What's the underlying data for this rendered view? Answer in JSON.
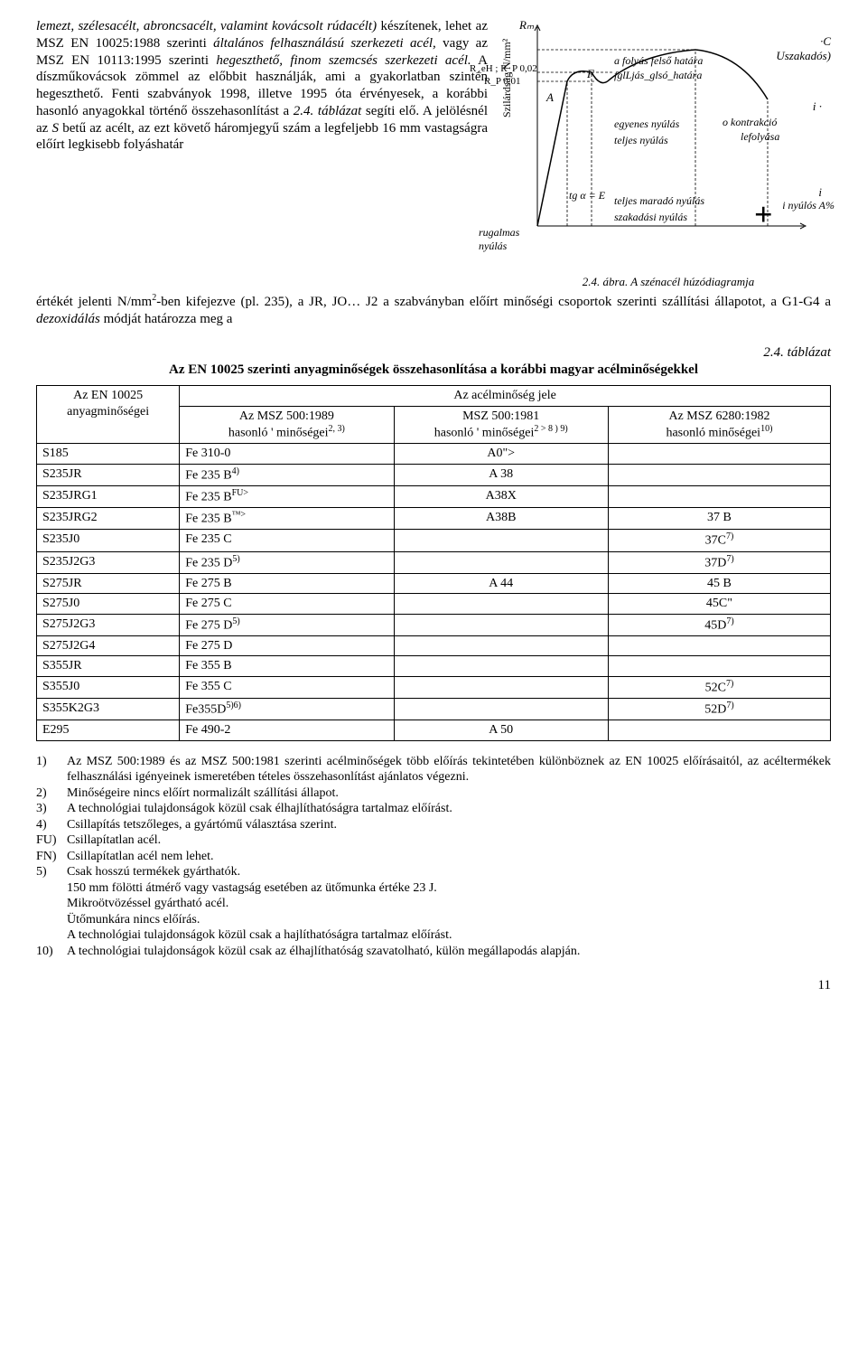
{
  "paragraph": {
    "sent1a": "lemezt, szélesacélt, abroncsacélt, ",
    "sent1b": "valamint kovácsolt rúdacélt)",
    "sent1c": " készítenek, lehet az MSZ EN 10025:1988 szerinti ",
    "sent1d": "általános felhasználású szerkezeti acél,",
    "sent1e": " vagy az MSZ EN 10113:1995 szerinti ",
    "sent1f": "hegeszthető, finom szemcsés szerkezeti acél.",
    "sent1g": " A díszműkovácsok zömmel az előbbit használják, ami a gyakorlatban szintén hegeszthető. Fenti szabványok 1998, illetve 1995 óta érvényesek, a korábbi hasonló anyagokkal történő összehasonlítást a ",
    "sent1h": "2.4. táblázat",
    "sent1i": " segíti elő. A jelölésnél az ",
    "sent1j": "S",
    "sent1k": " betű az acélt, az ezt követő háromjegyű szám a legfeljebb 16 mm vastagságra előírt legkisebb folyáshatár",
    "para2a": "értékét jelenti N/mm",
    "para2b": "-ben kifejezve (pl. 235), a JR, JO… J2 a szabványban előírt minőségi csoportok szerinti szállítási állapotot, a G1-G4 a ",
    "para2c": "dezoxidálás",
    "para2d": " módját határozza meg a"
  },
  "figure": {
    "Rm": "Rₘ",
    "ReH": "R_eH ; R_P 0,02",
    "Rp": "R_P 0,01",
    "yaxis": "Szilárdság\nN/mm²",
    "A": "A",
    "F": "F",
    "tg": "tg α = E",
    "rugalmas": "rugalmas\nnyúlás",
    "felsohat": "a folyás felső határa",
    "alsohat": "fglLjás_glsó_határa",
    "egyenes": "egyenes nyúlás",
    "teljes": "teljes nyúlás",
    "maradonyulas": "teljes maradó nyúlás",
    "szakadasi": "szakadási nyúlás",
    "kontrakcio": "o kontrakció",
    "lefolyasa": "lefolyása",
    "plus": "+",
    "C": "·C",
    "Uszak": "Uszakadós)",
    "i1": "i ·",
    "i2": "i",
    "i3": "i nyúlós A%",
    "caption": "2.4. ábra. A szénacél húzódiagramja"
  },
  "table": {
    "number": "2.4. táblázat",
    "title": "Az EN 10025 szerinti anyagminőségek összehasonlítása a korábbi magyar acélminőségekkel",
    "header_group": "Az acélminőség jele",
    "h1a": "Az EN 10025",
    "h1b": "anyagminőségei",
    "h2a": "Az MSZ 500:1989",
    "h2b": "hasonló ' minőségei",
    "h2sup": "2, 3)",
    "h3a": "MSZ 500:1981",
    "h3b": "hasonló ' minőségei",
    "h3sup": "2 > 8 ) 9)",
    "h4a": "Az MSZ 6280:1982",
    "h4b": "hasonló minőségei",
    "h4sup": "10)",
    "rows": [
      {
        "c1": "S185",
        "c2": "Fe 310-0",
        "c3": "A0\">",
        "c4": ""
      },
      {
        "c1": "S235JR",
        "c2": "Fe 235 B",
        "c2sup": "4)",
        "c3": "A 38",
        "c4": ""
      },
      {
        "c1": "S235JRG1",
        "c2": "Fe 235 B",
        "c2sup": "FU>",
        "c3": "A38X",
        "c4": ""
      },
      {
        "c1": "S235JRG2",
        "c2": "Fe 235 B",
        "c2sup": "™>",
        "c3": "A38B",
        "c4": "37 B"
      },
      {
        "c1": "S235J0",
        "c2": "Fe 235 C",
        "c3": "",
        "c4": "37C",
        "c4sup": "7)"
      },
      {
        "c1": "S235J2G3",
        "c2": "Fe 235 D",
        "c2sup": "5)",
        "c3": "",
        "c4": "37D",
        "c4sup": "7)"
      },
      {
        "c1": "S275JR",
        "c2": "Fe 275 B",
        "c3": "A 44",
        "c4": "45 B"
      },
      {
        "c1": "S275J0",
        "c2": "Fe 275 C",
        "c3": "",
        "c4": "45C\""
      },
      {
        "c1": "S275J2G3",
        "c2": "Fe 275 D",
        "c2sup": "5)",
        "c3": "",
        "c4": "45D",
        "c4sup": "7)"
      },
      {
        "c1": "S275J2G4",
        "c2": "Fe 275 D",
        "c3": "",
        "c4": ""
      },
      {
        "c1": "S355JR",
        "c2": "Fe 355 B",
        "c3": "",
        "c4": ""
      },
      {
        "c1": "S355J0",
        "c2": "Fe 355 C",
        "c3": "",
        "c4": "52C",
        "c4sup": "7)"
      },
      {
        "c1": "S355K2G3",
        "c2": "Fe355D",
        "c2sup": "5)6)",
        "c3": "",
        "c4": "52D",
        "c4sup": "7)"
      },
      {
        "c1": "E295",
        "c2": "Fe 490-2",
        "c3": "A 50",
        "c4": ""
      }
    ]
  },
  "footnotes": [
    {
      "n": "1)",
      "t": "Az MSZ 500:1989 és az MSZ 500:1981 szerinti acélminőségek több előírás tekintetében különböznek az EN 10025 előírásaitól, az acéltermékek felhasználási igényeinek ismeretében tételes összehasonlítást ajánlatos végezni."
    },
    {
      "n": "2)",
      "t": "Minőségeire nincs előírt normalizált szállítási állapot."
    },
    {
      "n": "3)",
      "t": "A technológiai tulajdonságok közül csak élhajlíthatóságra tartalmaz előírást."
    },
    {
      "n": "4)",
      "t": "Csillapítás tetszőleges, a gyártómű választása szerint."
    },
    {
      "n": "FU)",
      "t": "Csillapítatlan acél."
    },
    {
      "n": "FN)",
      "t": "Csillapítatlan acél nem lehet."
    },
    {
      "n": "5)",
      "t": "Csak hosszú termékek gyárthatók."
    },
    {
      "n": "",
      "t": "150 mm fölötti átmérő vagy vastagság esetében az ütőmunka értéke 23 J."
    },
    {
      "n": "",
      "t": "Mikroötvözéssel gyártható acél."
    },
    {
      "n": "",
      "t": "Ütőmunkára nincs előírás."
    },
    {
      "n": "",
      "t": "A technológiai tulajdonságok közül csak a hajlíthatóságra tartalmaz előírást."
    },
    {
      "n": "10)",
      "t": "A technológiai tulajdonságok közül csak az élhajlíthatóság szavatolható, külön megállapodás alapján."
    }
  ],
  "page": "11"
}
